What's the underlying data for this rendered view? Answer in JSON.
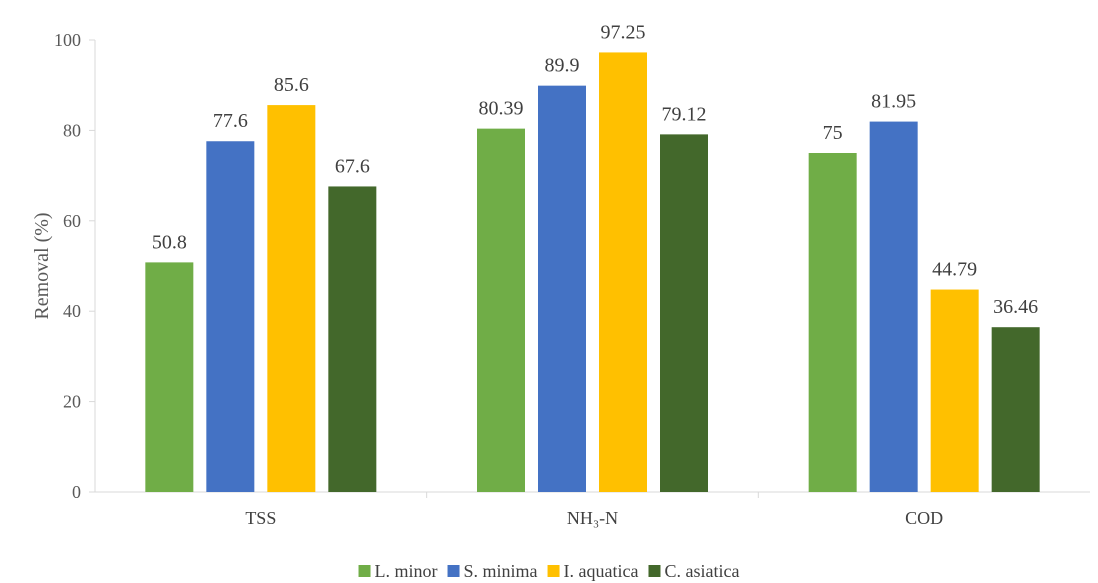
{
  "chart_data": {
    "type": "bar",
    "title": "",
    "xlabel": "",
    "ylabel": "Removal (%)",
    "ylim": [
      0,
      100
    ],
    "yticks": [
      0,
      20,
      40,
      60,
      80,
      100
    ],
    "grid": false,
    "legend_position": "bottom",
    "categories": [
      "TSS",
      "NH₃-N",
      "COD"
    ],
    "series": [
      {
        "name": "L. minor",
        "color": "#70ad47",
        "values": [
          50.8,
          80.39,
          75
        ]
      },
      {
        "name": "S. minima",
        "color": "#4472c4",
        "values": [
          77.6,
          89.9,
          81.95
        ]
      },
      {
        "name": "I. aquatica",
        "color": "#ffc000",
        "values": [
          85.6,
          97.25,
          44.79
        ]
      },
      {
        "name": "C. asiatica",
        "color": "#43682b",
        "values": [
          67.6,
          79.12,
          36.46
        ]
      }
    ]
  }
}
